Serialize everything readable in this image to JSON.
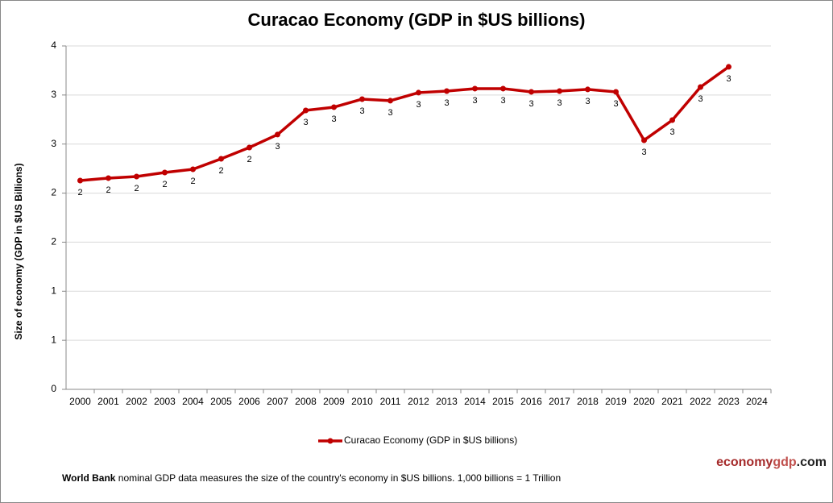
{
  "chart_data": {
    "type": "line",
    "title": "Curacao Economy (GDP in $US billions)",
    "y_label": "Size of economy (GDP in $US Billions)",
    "categories": [
      "2000",
      "2001",
      "2002",
      "2003",
      "2004",
      "2005",
      "2006",
      "2007",
      "2008",
      "2009",
      "2010",
      "2011",
      "2012",
      "2013",
      "2014",
      "2015",
      "2016",
      "2017",
      "2018",
      "2019",
      "2020",
      "2021",
      "2022",
      "2023",
      "2024"
    ],
    "series": [
      {
        "name": "Curacao Economy (GDP in $US billions)",
        "color": "#c00000",
        "values": [
          2.128,
          2.153,
          2.169,
          2.21,
          2.243,
          2.35,
          2.465,
          2.597,
          2.843,
          2.876,
          2.958,
          2.942,
          3.024,
          3.04,
          3.065,
          3.065,
          3.032,
          3.04,
          3.057,
          3.032,
          2.539,
          2.744,
          3.081,
          3.287,
          null
        ],
        "value_labels": [
          "2",
          "2",
          "2",
          "2",
          "2",
          "2",
          "2",
          "3",
          "3",
          "3",
          "3",
          "3",
          "3",
          "3",
          "3",
          "3",
          "3",
          "3",
          "3",
          "3",
          "3",
          "3",
          "3",
          "3",
          null
        ]
      }
    ],
    "ylim": [
      0,
      3.5
    ],
    "yticks": [
      0,
      {
        "value": 0.5,
        "label": "1"
      },
      1,
      {
        "value": 1.5,
        "label": "2"
      },
      2,
      {
        "value": 2.5,
        "label": "3"
      },
      3,
      {
        "value": 3.5,
        "label": "4"
      }
    ],
    "grid": true,
    "legend": "bottom",
    "footer": {
      "source": "World Bank",
      "note": "nominal GDP data  measures the size of the country's economy in $US billions. 1,000 billions = 1 Trillion"
    },
    "brand": [
      "economy",
      "gdp",
      ".com"
    ]
  }
}
